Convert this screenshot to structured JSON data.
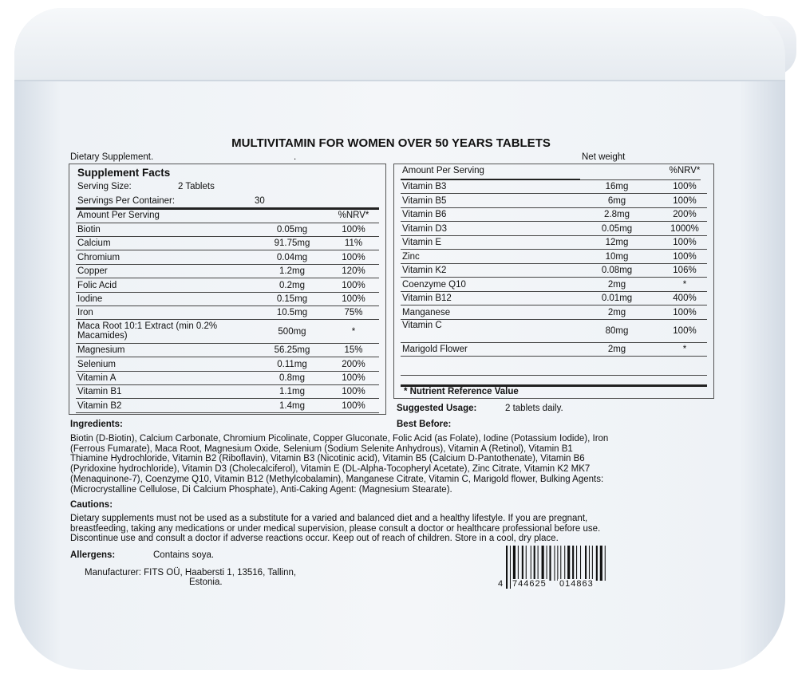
{
  "title": "MULTIVITAMIN FOR WOMEN OVER 50 YEARS TABLETS",
  "dietary_supplement": "Dietary Supplement.",
  "dot": ".",
  "net_weight": "Net weight",
  "left_table": {
    "heading": "Supplement Facts",
    "serving_size_label": "Serving Size:",
    "serving_size_value": "2 Tablets",
    "servings_label": "Servings Per Container:",
    "servings_value": "30",
    "header_amount": "Amount Per Serving",
    "header_nrv": "%NRV*",
    "rows": [
      {
        "name": "Biotin",
        "amount": "0.05mg",
        "nrv": "100%"
      },
      {
        "name": "Calcium",
        "amount": "91.75mg",
        "nrv": "11%"
      },
      {
        "name": "Chromium",
        "amount": "0.04mg",
        "nrv": "100%"
      },
      {
        "name": "Copper",
        "amount": "1.2mg",
        "nrv": "120%"
      },
      {
        "name": "Folic Acid",
        "amount": "0.2mg",
        "nrv": "100%"
      },
      {
        "name": "Iodine",
        "amount": "0.15mg",
        "nrv": "100%"
      },
      {
        "name": "Iron",
        "amount": "10.5mg",
        "nrv": "75%"
      },
      {
        "name": "Maca Root 10:1 Extract (min 0.2% Macamides)",
        "amount": "500mg",
        "nrv": "*"
      },
      {
        "name": "Magnesium",
        "amount": "56.25mg",
        "nrv": "15%"
      },
      {
        "name": "Selenium",
        "amount": "0.11mg",
        "nrv": "200%"
      },
      {
        "name": "Vitamin A",
        "amount": "0.8mg",
        "nrv": "100%"
      },
      {
        "name": "Vitamin B1",
        "amount": "1.1mg",
        "nrv": "100%"
      },
      {
        "name": "Vitamin B2",
        "amount": "1.4mg",
        "nrv": "100%"
      }
    ]
  },
  "right_table": {
    "header_amount": "Amount Per Serving",
    "header_nrv": "%NRV*",
    "rows": [
      {
        "name": "Vitamin B3",
        "amount": "16mg",
        "nrv": "100%"
      },
      {
        "name": "Vitamin B5",
        "amount": "6mg",
        "nrv": "100%"
      },
      {
        "name": "Vitamin B6",
        "amount": "2.8mg",
        "nrv": "200%"
      },
      {
        "name": "Vitamin D3",
        "amount": "0.05mg",
        "nrv": "1000%"
      },
      {
        "name": "Vitamin E",
        "amount": "12mg",
        "nrv": "100%"
      },
      {
        "name": "Zinc",
        "amount": "10mg",
        "nrv": "100%"
      },
      {
        "name": "Vitamin K2",
        "amount": "0.08mg",
        "nrv": "106%"
      },
      {
        "name": "Coenzyme Q10",
        "amount": "2mg",
        "nrv": "*"
      },
      {
        "name": "Vitamin B12",
        "amount": "0.01mg",
        "nrv": "400%"
      },
      {
        "name": "Manganese",
        "amount": "2mg",
        "nrv": "100%"
      },
      {
        "name": "Vitamin C",
        "amount": "80mg",
        "nrv": "100%"
      },
      {
        "name": "Marigold Flower",
        "amount": "2mg",
        "nrv": "*"
      }
    ],
    "footnote": "* Nutrient Reference Value"
  },
  "suggested_usage_label": "Suggested Usage:",
  "suggested_usage_value": "2 tablets daily.",
  "best_before_label": "Best Before:",
  "ingredients_label": "Ingredients:",
  "ingredients_lines": [
    "Biotin (D-Biotin), Calcium Carbonate, Chromium Picolinate, Copper Gluconate, Folic Acid (as Folate), Iodine (Potassium Iodide), Iron",
    "(Ferrous Fumarate), Maca Root, Magnesium Oxide, Selenium (Sodium Selenite Anhydrous), Vitamin A (Retinol), Vitamin B1",
    "Thiamine Hydrochloride, Vitamin B2 (Riboflavin), Vitamin B3 (Nicotinic acid), Vitamin B5 (Calcium D-Pantothenate), Vitamin B6",
    "(Pyridoxine hydrochloride), Vitamin D3 (Cholecalciferol), Vitamin E (DL-Alpha-Tocopheryl Acetate), Zinc Citrate, Vitamin K2 MK7",
    "(Menaquinone-7), Coenzyme Q10, Vitamin B12 (Methylcobalamin), Manganese Citrate, Vitamin C, Marigold flower, Bulking Agents:",
    "(Microcrystalline Cellulose, Di Calcium Phosphate), Anti-Caking Agent: (Magnesium Stearate)."
  ],
  "cautions_label": "Cautions:",
  "cautions_lines": [
    "Dietary supplements must not be used as a substitute for a varied and balanced diet and a healthy lifestyle. If you are pregnant,",
    "breastfeeding, taking any medications or under medical supervision, please consult a doctor or healthcare professional before use.",
    "Discontinue use and consult a doctor if adverse reactions occur. Keep out of reach of children. Store in a cool, dry place."
  ],
  "allergens_label": "Allergens:",
  "allergens_value": "Contains soya.",
  "manufacturer_line1": "Manufacturer: FITS OÜ, Haabersti 1, 13516, Tallinn,",
  "manufacturer_line2": "Estonia.",
  "barcode": {
    "lead": "4",
    "left": "744625",
    "right": "014863"
  }
}
